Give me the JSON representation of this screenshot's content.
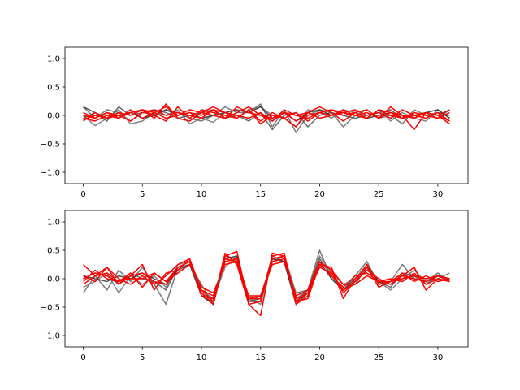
{
  "chart_data": [
    {
      "type": "line",
      "title": "",
      "xlabel": "",
      "ylabel": "",
      "xlim": [
        -1.55,
        32.55
      ],
      "ylim": [
        -1.2,
        1.2
      ],
      "xticks": [
        0,
        5,
        10,
        15,
        20,
        25,
        30
      ],
      "xtick_labels": [
        "0",
        "5",
        "10",
        "15",
        "20",
        "25",
        "30"
      ],
      "yticks": [
        1.0,
        0.5,
        0.0,
        -0.5,
        -1.0
      ],
      "ytick_labels": [
        "1.0",
        "0.5",
        "0.0",
        "−0.5",
        "−1.0"
      ],
      "grid": false,
      "legend": "none",
      "x": [
        0,
        1,
        2,
        3,
        4,
        5,
        6,
        7,
        8,
        9,
        10,
        11,
        12,
        13,
        14,
        15,
        16,
        17,
        18,
        19,
        20,
        21,
        22,
        23,
        24,
        25,
        26,
        27,
        28,
        29,
        30,
        31
      ],
      "series": [
        {
          "color": "#606060",
          "values": [
            0.15,
            -0.05,
            0.1,
            0.05,
            -0.1,
            0.05,
            0.02,
            0.1,
            0.05,
            -0.05,
            -0.1,
            0.0,
            0.15,
            0.05,
            0.05,
            0.2,
            -0.2,
            0.1,
            -0.3,
            0.0,
            0.1,
            0.05,
            -0.2,
            0.0,
            0.1,
            -0.05,
            0.0,
            -0.15,
            0.1,
            0.0,
            0.05,
            0.0
          ]
        },
        {
          "color": "#707070",
          "values": [
            0.0,
            -0.18,
            -0.05,
            0.1,
            -0.15,
            -0.1,
            0.05,
            0.0,
            0.1,
            -0.15,
            -0.05,
            -0.12,
            0.05,
            -0.05,
            0.1,
            0.15,
            0.0,
            -0.05,
            -0.2,
            0.1,
            0.05,
            -0.05,
            0.1,
            0.05,
            -0.05,
            0.1,
            -0.1,
            0.05,
            -0.05,
            -0.1,
            0.1,
            -0.05
          ]
        },
        {
          "color": "#505050",
          "values": [
            -0.05,
            0.05,
            -0.1,
            0.15,
            0.0,
            0.05,
            0.1,
            0.05,
            -0.05,
            0.0,
            0.05,
            0.1,
            -0.05,
            0.0,
            -0.1,
            0.05,
            -0.25,
            0.0,
            0.05,
            -0.2,
            0.0,
            0.05,
            0.0,
            -0.05,
            0.0,
            0.05,
            0.1,
            -0.05,
            0.0,
            0.05,
            -0.05,
            0.1
          ]
        },
        {
          "color": "#303030",
          "values": [
            0.15,
            0.05,
            -0.05,
            0.0,
            0.05,
            -0.05,
            0.0,
            0.1,
            0.0,
            0.05,
            -0.05,
            0.0,
            0.05,
            0.1,
            0.05,
            0.15,
            -0.05,
            0.05,
            -0.1,
            0.05,
            0.1,
            0.0,
            0.05,
            0.0,
            -0.05,
            0.0,
            0.05,
            0.0,
            -0.05,
            0.05,
            0.1,
            -0.05
          ]
        },
        {
          "color": "#ff0000",
          "values": [
            -0.05,
            -0.1,
            0.0,
            -0.05,
            0.05,
            0.1,
            -0.05,
            0.2,
            -0.05,
            -0.1,
            0.05,
            0.15,
            0.05,
            -0.05,
            0.1,
            -0.1,
            0.05,
            -0.05,
            -0.2,
            0.05,
            0.15,
            0.05,
            -0.1,
            0.05,
            0.1,
            -0.05,
            0.15,
            0.0,
            -0.25,
            0.05,
            0.0,
            0.1
          ]
        },
        {
          "color": "#ff0000",
          "values": [
            0.05,
            -0.05,
            0.05,
            -0.05,
            0.1,
            -0.05,
            0.05,
            0.15,
            0.0,
            0.05,
            0.0,
            0.1,
            -0.05,
            0.15,
            0.05,
            0.0,
            -0.1,
            0.05,
            0.0,
            -0.05,
            0.05,
            0.0,
            0.05,
            0.1,
            0.0,
            0.05,
            -0.05,
            0.1,
            0.0,
            -0.05,
            0.05,
            -0.1
          ]
        },
        {
          "color": "#ff0000",
          "values": [
            -0.1,
            0.05,
            -0.05,
            0.0,
            0.05,
            0.1,
            0.0,
            -0.1,
            0.15,
            -0.05,
            0.1,
            0.05,
            0.0,
            -0.05,
            0.1,
            -0.15,
            0.0,
            -0.05,
            0.05,
            -0.1,
            0.05,
            0.1,
            0.0,
            0.05,
            -0.05,
            0.1,
            0.0,
            -0.05,
            0.05,
            0.0,
            -0.05,
            0.05
          ]
        },
        {
          "color": "#ff0000",
          "values": [
            0.0,
            -0.05,
            0.05,
            0.0,
            -0.1,
            0.05,
            0.1,
            0.0,
            0.05,
            0.0,
            -0.05,
            0.1,
            0.05,
            0.0,
            -0.05,
            0.05,
            -0.1,
            0.1,
            0.0,
            0.05,
            -0.05,
            0.0,
            0.1,
            0.0,
            0.05,
            -0.05,
            0.05,
            0.0,
            -0.05,
            0.05,
            0.0,
            -0.15
          ]
        },
        {
          "color": "#ff0000",
          "values": [
            -0.08,
            0.0,
            -0.05,
            0.05,
            0.0,
            0.1,
            0.05,
            -0.05,
            0.0,
            0.1,
            0.05,
            0.0,
            -0.05,
            0.05,
            0.15,
            0.0,
            -0.05,
            0.05,
            -0.1,
            0.0,
            0.05,
            0.1,
            0.05,
            0.0,
            -0.05,
            0.1,
            0.05,
            -0.05,
            0.0,
            0.05,
            0.0,
            -0.1
          ]
        }
      ]
    },
    {
      "type": "line",
      "title": "",
      "xlabel": "",
      "ylabel": "",
      "xlim": [
        -1.55,
        32.55
      ],
      "ylim": [
        -1.2,
        1.2
      ],
      "xticks": [
        0,
        5,
        10,
        15,
        20,
        25,
        30
      ],
      "xtick_labels": [
        "0",
        "5",
        "10",
        "15",
        "20",
        "25",
        "30"
      ],
      "yticks": [
        1.0,
        0.5,
        0.0,
        -0.5,
        -1.0
      ],
      "ytick_labels": [
        "1.0",
        "0.5",
        "0.0",
        "−0.5",
        "−1.0"
      ],
      "grid": false,
      "legend": "none",
      "x": [
        0,
        1,
        2,
        3,
        4,
        5,
        6,
        7,
        8,
        9,
        10,
        11,
        12,
        13,
        14,
        15,
        16,
        17,
        18,
        19,
        20,
        21,
        22,
        23,
        24,
        25,
        26,
        27,
        28,
        29,
        30,
        31
      ],
      "series": [
        {
          "color": "#606060",
          "values": [
            -0.25,
            0.05,
            -0.2,
            0.15,
            -0.05,
            0.2,
            -0.1,
            -0.45,
            0.2,
            0.25,
            -0.1,
            -0.45,
            0.4,
            0.3,
            -0.4,
            -0.3,
            0.3,
            0.4,
            -0.25,
            -0.2,
            0.5,
            0.0,
            -0.2,
            0.05,
            0.3,
            -0.1,
            -0.05,
            0.25,
            0.0,
            -0.05,
            0.1,
            -0.05
          ]
        },
        {
          "color": "#707070",
          "values": [
            -0.15,
            -0.05,
            0.1,
            -0.25,
            0.05,
            -0.1,
            0.05,
            -0.15,
            0.25,
            0.3,
            -0.2,
            -0.35,
            0.2,
            0.4,
            -0.35,
            -0.45,
            0.35,
            0.3,
            -0.35,
            -0.2,
            0.4,
            0.1,
            -0.1,
            0.0,
            0.25,
            -0.05,
            -0.2,
            0.0,
            0.15,
            -0.05,
            0.0,
            0.1
          ]
        },
        {
          "color": "#505050",
          "values": [
            0.0,
            0.1,
            0.05,
            -0.1,
            0.1,
            0.0,
            -0.05,
            -0.2,
            0.2,
            0.3,
            -0.25,
            -0.4,
            0.4,
            0.35,
            -0.4,
            -0.35,
            0.4,
            0.3,
            -0.4,
            -0.2,
            0.35,
            0.05,
            -0.2,
            -0.1,
            0.2,
            -0.05,
            -0.15,
            0.1,
            0.05,
            -0.1,
            0.05,
            0.0
          ]
        },
        {
          "color": "#303030",
          "values": [
            0.05,
            0.0,
            -0.05,
            0.05,
            0.0,
            0.1,
            0.0,
            -0.1,
            0.15,
            0.25,
            -0.3,
            -0.45,
            0.35,
            0.4,
            -0.4,
            -0.4,
            0.35,
            0.3,
            -0.45,
            -0.25,
            0.3,
            0.0,
            -0.2,
            0.0,
            0.2,
            -0.05,
            -0.1,
            0.05,
            0.0,
            -0.05,
            0.05,
            0.0
          ]
        },
        {
          "color": "#ff0000",
          "values": [
            0.25,
            0.05,
            0.2,
            -0.1,
            0.05,
            0.25,
            -0.2,
            0.1,
            0.15,
            0.35,
            -0.2,
            -0.4,
            0.45,
            0.25,
            -0.45,
            -0.4,
            0.4,
            0.45,
            -0.4,
            -0.35,
            0.25,
            0.2,
            -0.35,
            0.0,
            0.2,
            -0.15,
            -0.05,
            0.1,
            -0.05,
            0.05,
            -0.05,
            0.0
          ]
        },
        {
          "color": "#ff0000",
          "values": [
            -0.05,
            0.15,
            0.0,
            -0.05,
            0.1,
            -0.15,
            0.1,
            -0.05,
            0.2,
            0.3,
            -0.25,
            -0.45,
            0.4,
            0.48,
            -0.45,
            -0.65,
            0.45,
            0.4,
            -0.45,
            -0.3,
            0.3,
            0.15,
            -0.25,
            -0.05,
            0.25,
            -0.1,
            -0.05,
            0.05,
            0.2,
            -0.2,
            0.0,
            -0.05
          ]
        },
        {
          "color": "#ff0000",
          "values": [
            0.05,
            -0.05,
            0.2,
            0.0,
            -0.1,
            0.05,
            -0.1,
            0.05,
            0.25,
            0.35,
            -0.3,
            -0.35,
            0.35,
            0.3,
            -0.35,
            -0.3,
            0.3,
            0.35,
            -0.35,
            -0.25,
            0.2,
            0.1,
            -0.2,
            -0.05,
            0.15,
            0.0,
            -0.1,
            0.05,
            0.0,
            -0.05,
            0.05,
            -0.05
          ]
        },
        {
          "color": "#ff0000",
          "values": [
            0.0,
            0.1,
            0.05,
            -0.05,
            0.05,
            0.1,
            -0.05,
            -0.1,
            0.2,
            0.3,
            -0.2,
            -0.3,
            0.3,
            0.35,
            -0.35,
            -0.35,
            0.35,
            0.4,
            -0.4,
            -0.25,
            0.25,
            0.05,
            -0.15,
            0.05,
            0.1,
            -0.05,
            -0.05,
            0.0,
            0.05,
            0.0,
            0.05,
            0.0
          ]
        },
        {
          "color": "#ff0000",
          "values": [
            -0.1,
            0.05,
            0.1,
            -0.05,
            0.0,
            0.0,
            0.1,
            -0.05,
            0.1,
            0.25,
            -0.15,
            -0.25,
            0.25,
            0.3,
            -0.3,
            -0.3,
            0.25,
            0.3,
            -0.3,
            -0.2,
            0.3,
            0.15,
            -0.1,
            -0.1,
            0.05,
            -0.05,
            0.0,
            -0.05,
            0.1,
            -0.1,
            0.0,
            -0.05
          ]
        }
      ]
    }
  ]
}
